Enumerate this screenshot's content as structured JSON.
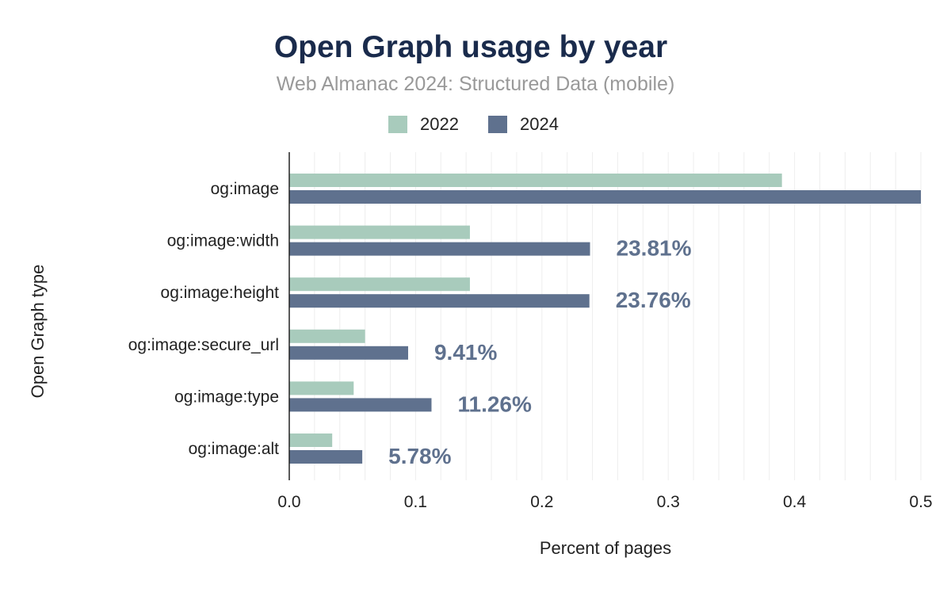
{
  "chart_data": {
    "type": "bar",
    "orientation": "horizontal",
    "title": "Open Graph usage by year",
    "subtitle": "Web Almanac 2024: Structured Data (mobile)",
    "xlabel": "Percent of pages",
    "ylabel": "Open Graph type",
    "categories": [
      "og:image",
      "og:image:width",
      "og:image:height",
      "og:image:secure_url",
      "og:image:type",
      "og:image:alt"
    ],
    "series": [
      {
        "name": "2022",
        "color": "#a8cbbc",
        "values": [
          0.39,
          0.143,
          0.143,
          0.06,
          0.051,
          0.034
        ]
      },
      {
        "name": "2024",
        "color": "#5f718e",
        "values": [
          0.5,
          0.2381,
          0.2376,
          0.0941,
          0.1126,
          0.0578
        ]
      }
    ],
    "data_labels": [
      "",
      "23.81%",
      "23.76%",
      "9.41%",
      "11.26%",
      "5.78%"
    ],
    "xlim": [
      0,
      0.5
    ],
    "x_ticks": [
      "0.0",
      "0.1",
      "0.2",
      "0.3",
      "0.4",
      "0.5"
    ],
    "grid": true,
    "legend_position": "top-center",
    "title_color": "#1a2b4c",
    "subtitle_color": "#999999",
    "label_color": "#5f718e"
  }
}
